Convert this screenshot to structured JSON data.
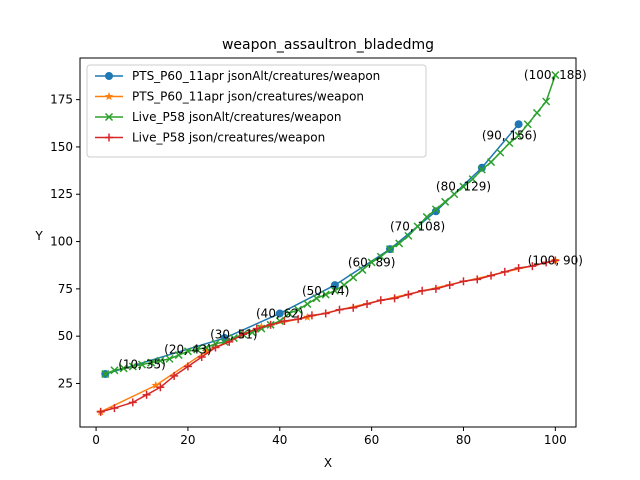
{
  "chart_data": {
    "type": "line",
    "title": "weapon_assaultron_bladedmg",
    "xlabel": "X",
    "ylabel": "Y",
    "xlim": [
      -3.5,
      104.5
    ],
    "ylim": [
      2,
      197
    ],
    "xticks": [
      0,
      20,
      40,
      60,
      80,
      100
    ],
    "yticks": [
      25,
      50,
      75,
      100,
      125,
      150,
      175
    ],
    "grid": false,
    "legend_position": "top-left",
    "series": [
      {
        "name": "PTS_P60_11apr jsonAlt/creatures/weapon",
        "color": "#1f77b4",
        "marker": "circle",
        "x": [
          2,
          28,
          40,
          52,
          64,
          74,
          84,
          92
        ],
        "y": [
          30,
          49,
          62,
          77,
          96,
          116,
          139,
          162
        ]
      },
      {
        "name": "PTS_P60_11apr json/creatures/weapon",
        "color": "#ff7f0e",
        "marker": "star",
        "x": [
          1,
          13,
          24,
          36,
          46,
          100
        ],
        "y": [
          10,
          24,
          42,
          55,
          60,
          90
        ]
      },
      {
        "name": "Live_P58 jsonAlt/creatures/weapon",
        "color": "#2ca02c",
        "marker": "x",
        "x": [
          2,
          4,
          6,
          8,
          10,
          12,
          14,
          16,
          18,
          20,
          22,
          24,
          26,
          28,
          30,
          32,
          34,
          36,
          38,
          40,
          42,
          44,
          46,
          48,
          50,
          52,
          54,
          56,
          58,
          60,
          62,
          64,
          66,
          68,
          70,
          72,
          74,
          76,
          78,
          80,
          82,
          84,
          86,
          88,
          90,
          92,
          94,
          96,
          98,
          100
        ],
        "y": [
          30,
          32,
          33,
          34,
          35,
          36,
          37,
          38,
          40,
          42,
          43,
          44,
          46,
          47,
          49,
          51,
          52,
          54,
          56,
          58,
          62,
          64,
          67,
          70,
          72,
          74,
          77,
          81,
          85,
          89,
          92,
          96,
          99,
          103,
          108,
          113,
          117,
          121,
          125,
          129,
          133,
          138,
          142,
          147,
          152,
          156,
          162,
          168,
          174,
          188
        ]
      },
      {
        "name": "Live_P58 json/creatures/weapon",
        "color": "#d62728",
        "marker": "plus",
        "x": [
          1,
          4,
          8,
          11,
          14,
          17,
          20,
          23,
          26,
          29,
          32,
          35,
          38,
          41,
          44,
          47,
          50,
          53,
          56,
          59,
          62,
          65,
          68,
          71,
          74,
          77,
          80,
          83,
          86,
          89,
          92,
          95,
          98,
          100
        ],
        "y": [
          10,
          12,
          15,
          19,
          23,
          29,
          34,
          39,
          44,
          47,
          51,
          54,
          56,
          58,
          59,
          61,
          62,
          64,
          65,
          67,
          69,
          70,
          72,
          74,
          75,
          77,
          79,
          80,
          82,
          84,
          86,
          87,
          89,
          90
        ]
      }
    ],
    "annotations": [
      {
        "x": 10,
        "y": 35,
        "text": "(10, 35)"
      },
      {
        "x": 20,
        "y": 43,
        "text": "(20, 43)"
      },
      {
        "x": 30,
        "y": 51,
        "text": "(30, 51)"
      },
      {
        "x": 40,
        "y": 62,
        "text": "(40, 62)"
      },
      {
        "x": 50,
        "y": 74,
        "text": "(50, 74)"
      },
      {
        "x": 60,
        "y": 89,
        "text": "(60, 89)"
      },
      {
        "x": 70,
        "y": 108,
        "text": "(70, 108)"
      },
      {
        "x": 80,
        "y": 129,
        "text": "(80, 129)"
      },
      {
        "x": 90,
        "y": 156,
        "text": "(90, 156)"
      },
      {
        "x": 100,
        "y": 188,
        "text": "(100, 188)"
      },
      {
        "x": 100,
        "y": 90,
        "text": "(100, 90)"
      }
    ]
  }
}
